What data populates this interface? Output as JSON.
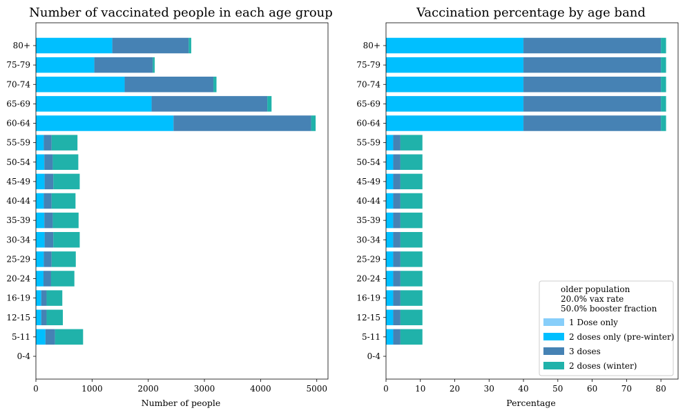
{
  "colors": {
    "dose1": "#87CEFA",
    "dose2_pre": "#00BFFF",
    "dose3": "#4682B4",
    "dose2_winter": "#20B2AA"
  },
  "chart_data": [
    {
      "type": "bar",
      "orientation": "horizontal",
      "stacked": true,
      "title": "Number of vaccinated people in each age group",
      "xlabel": "Number of people",
      "ylabel": "",
      "xlim": [
        0,
        5200
      ],
      "xticks": [
        0,
        1000,
        2000,
        3000,
        4000,
        5000
      ],
      "categories": [
        "0-4",
        "5-11",
        "12-15",
        "16-19",
        "20-24",
        "25-29",
        "30-34",
        "35-39",
        "40-44",
        "45-49",
        "50-54",
        "55-59",
        "60-64",
        "65-69",
        "70-74",
        "75-79",
        "80+"
      ],
      "series": [
        {
          "name": "1 Dose only",
          "values": [
            0,
            0,
            0,
            0,
            0,
            0,
            0,
            0,
            0,
            0,
            0,
            0,
            0,
            0,
            0,
            0,
            0
          ]
        },
        {
          "name": "2 doses only (pre-winter)",
          "values": [
            0,
            170,
            95,
            95,
            135,
            140,
            155,
            150,
            140,
            155,
            150,
            140,
            2450,
            2060,
            1580,
            1040,
            1360
          ]
        },
        {
          "name": "3 doses",
          "values": [
            0,
            170,
            95,
            95,
            135,
            140,
            155,
            150,
            140,
            155,
            150,
            140,
            2450,
            2060,
            1580,
            1040,
            1360
          ]
        },
        {
          "name": "2 doses (winter)",
          "values": [
            0,
            500,
            290,
            280,
            415,
            430,
            470,
            460,
            425,
            470,
            455,
            460,
            80,
            75,
            55,
            35,
            45
          ]
        }
      ]
    },
    {
      "type": "bar",
      "orientation": "horizontal",
      "stacked": true,
      "title": "Vaccination percentage by age band",
      "xlabel": "Percentage",
      "ylabel": "",
      "xlim": [
        0,
        85
      ],
      "xticks": [
        0,
        10,
        20,
        30,
        40,
        50,
        60,
        70,
        80
      ],
      "categories": [
        "0-4",
        "5-11",
        "12-15",
        "16-19",
        "20-24",
        "25-29",
        "30-34",
        "35-39",
        "40-44",
        "45-49",
        "50-54",
        "55-59",
        "60-64",
        "65-69",
        "70-74",
        "75-79",
        "80+"
      ],
      "series": [
        {
          "name": "1 Dose only",
          "values": [
            0,
            0,
            0,
            0,
            0,
            0,
            0,
            0,
            0,
            0,
            0,
            0,
            0,
            0,
            0,
            0,
            0
          ]
        },
        {
          "name": "2 doses only (pre-winter)",
          "values": [
            0,
            2.1,
            2.1,
            2.1,
            2.1,
            2.1,
            2.1,
            2.1,
            2.1,
            2.1,
            2.1,
            2.1,
            40,
            40,
            40,
            40,
            40
          ]
        },
        {
          "name": "3 doses",
          "values": [
            0,
            2.1,
            2.1,
            2.1,
            2.1,
            2.1,
            2.1,
            2.1,
            2.1,
            2.1,
            2.1,
            2.1,
            40,
            40,
            40,
            40,
            40
          ]
        },
        {
          "name": "2 doses (winter)",
          "values": [
            0,
            6.4,
            6.4,
            6.4,
            6.4,
            6.4,
            6.4,
            6.4,
            6.4,
            6.4,
            6.4,
            6.4,
            1.5,
            1.5,
            1.5,
            1.5,
            1.5
          ]
        }
      ],
      "legend": {
        "placement": "lower right",
        "title_lines": [
          "older population",
          "20.0% vax rate",
          "50.0% booster fraction"
        ],
        "entries": [
          "1 Dose only",
          "2 doses only (pre-winter)",
          "3 doses",
          "2 doses (winter)"
        ]
      }
    }
  ]
}
